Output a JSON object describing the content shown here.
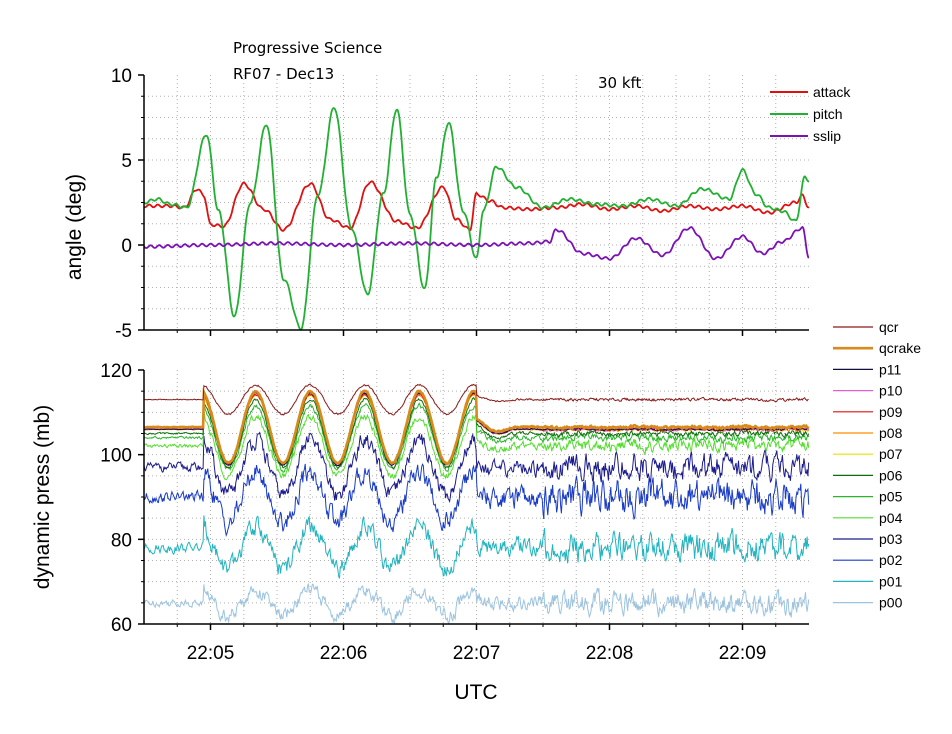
{
  "chart_data": {
    "type": "line",
    "annotations": {
      "title_line1": "Progressive Science",
      "title_line2": "RF07 - Dec13",
      "altitude": "30 kft"
    },
    "xlabel": "UTC",
    "x_domain_minutes": [
      4.5,
      9.5
    ],
    "x_ticks": [
      {
        "value": 5,
        "label": "22:05"
      },
      {
        "value": 6,
        "label": "22:06"
      },
      {
        "value": 7,
        "label": "22:07"
      },
      {
        "value": 8,
        "label": "22:08"
      },
      {
        "value": 9,
        "label": "22:09"
      }
    ],
    "panels": [
      {
        "id": "angle",
        "ylabel": "angle (deg)",
        "ylim": [
          -5,
          10
        ],
        "y_ticks": [
          {
            "value": -5,
            "label": "-5"
          },
          {
            "value": 0,
            "label": "0"
          },
          {
            "value": 5,
            "label": "5"
          },
          {
            "value": 10,
            "label": "10"
          }
        ],
        "grid": true,
        "legend": "top-right",
        "series": [
          {
            "name": "attack",
            "color": "#e01010",
            "x": [
              4.5,
              4.7,
              4.8,
              4.9,
              4.95,
              5.0,
              5.1,
              5.25,
              5.4,
              5.55,
              5.75,
              5.9,
              6.05,
              6.2,
              6.4,
              6.55,
              6.75,
              6.85,
              6.95,
              7.0,
              7.1,
              7.2,
              7.4,
              7.6,
              7.8,
              8.0,
              8.2,
              8.4,
              8.6,
              8.8,
              9.0,
              9.2,
              9.4,
              9.45,
              9.5
            ],
            "values": [
              2.3,
              2.3,
              2.2,
              3.3,
              2.9,
              1.2,
              1.1,
              3.6,
              2.1,
              0.9,
              3.6,
              1.5,
              1.0,
              3.7,
              1.4,
              1.0,
              3.4,
              1.5,
              0.9,
              3.0,
              2.6,
              2.2,
              2.1,
              2.2,
              2.4,
              2.1,
              2.3,
              2.0,
              2.3,
              2.1,
              2.3,
              1.9,
              2.5,
              2.9,
              2.2
            ]
          },
          {
            "name": "pitch",
            "color": "#22b033",
            "x": [
              4.5,
              4.6,
              4.7,
              4.82,
              4.97,
              5.06,
              5.18,
              5.3,
              5.42,
              5.55,
              5.68,
              5.81,
              5.93,
              6.06,
              6.18,
              6.3,
              6.4,
              6.5,
              6.61,
              6.7,
              6.79,
              6.9,
              7.0,
              7.05,
              7.15,
              7.3,
              7.5,
              7.7,
              7.9,
              8.1,
              8.3,
              8.5,
              8.7,
              8.9,
              9.0,
              9.1,
              9.2,
              9.3,
              9.4,
              9.47,
              9.5
            ],
            "values": [
              2.5,
              2.7,
              2.4,
              2.2,
              6.5,
              2.0,
              -4.2,
              2.5,
              7.1,
              -2.0,
              -4.9,
              3.0,
              8.1,
              1.0,
              -2.9,
              3.0,
              8.0,
              1.8,
              -2.6,
              4.0,
              7.2,
              2.0,
              -0.8,
              2.0,
              4.6,
              3.4,
              2.2,
              2.7,
              2.4,
              2.3,
              2.7,
              2.3,
              3.3,
              2.7,
              4.4,
              3.0,
              2.2,
              2.0,
              1.4,
              4.0,
              3.8
            ]
          },
          {
            "name": "sslip",
            "color": "#7b12b5",
            "x": [
              4.5,
              5.0,
              5.5,
              6.0,
              6.5,
              7.0,
              7.4,
              7.55,
              7.6,
              7.8,
              8.0,
              8.2,
              8.4,
              8.6,
              8.8,
              9.0,
              9.15,
              9.3,
              9.45,
              9.5
            ],
            "values": [
              -0.1,
              0.0,
              0.1,
              0.0,
              0.1,
              0.0,
              0.1,
              0.2,
              0.9,
              -0.5,
              -0.8,
              0.4,
              -0.6,
              1.0,
              -0.8,
              0.5,
              -0.5,
              0.2,
              1.0,
              -0.7
            ]
          }
        ]
      },
      {
        "id": "pressure",
        "ylabel": "dynamic press (mb)",
        "ylim": [
          60,
          120
        ],
        "y_ticks": [
          {
            "value": 60,
            "label": "60"
          },
          {
            "value": 80,
            "label": "80"
          },
          {
            "value": 100,
            "label": "100"
          },
          {
            "value": 120,
            "label": "120"
          }
        ],
        "grid": true,
        "legend": "right-outside",
        "series": [
          {
            "name": "qcr",
            "color": "#8b1a1a",
            "base": 113,
            "osc": 3.5,
            "noise": 0.4
          },
          {
            "name": "qcrake",
            "color": "#d98a1a",
            "base": 106.5,
            "osc": 8.5,
            "noise": 0.3
          },
          {
            "name": "p11",
            "color": "#101040",
            "base": 106,
            "osc": 8.5,
            "noise": 0.3
          },
          {
            "name": "p10",
            "color": "#e060d0",
            "base": 106,
            "osc": 8.5,
            "noise": 0.4
          },
          {
            "name": "p09",
            "color": "#e01010",
            "base": 106,
            "osc": 8.2,
            "noise": 0.4
          },
          {
            "name": "p08",
            "color": "#ff8c00",
            "base": 106,
            "osc": 8.2,
            "noise": 0.5
          },
          {
            "name": "p07",
            "color": "#e8e000",
            "base": 106,
            "osc": 8.0,
            "noise": 0.5
          },
          {
            "name": "p06",
            "color": "#0a6e0a",
            "base": 105,
            "osc": 8.0,
            "noise": 0.7
          },
          {
            "name": "p05",
            "color": "#2bb52b",
            "base": 104,
            "osc": 7.5,
            "noise": 1.0
          },
          {
            "name": "p04",
            "color": "#55dd30",
            "base": 102,
            "osc": 7.0,
            "noise": 1.6
          },
          {
            "name": "p03",
            "color": "#1c1c8e",
            "base": 97,
            "osc": 6.5,
            "noise": 3.5
          },
          {
            "name": "p02",
            "color": "#1a3cc8",
            "base": 90,
            "osc": 6.0,
            "noise": 4.5
          },
          {
            "name": "p01",
            "color": "#22b4c0",
            "base": 78,
            "osc": 5.0,
            "noise": 4.0
          },
          {
            "name": "p00",
            "color": "#9cc4e0",
            "base": 65,
            "osc": 3.0,
            "noise": 3.0
          }
        ]
      }
    ]
  }
}
